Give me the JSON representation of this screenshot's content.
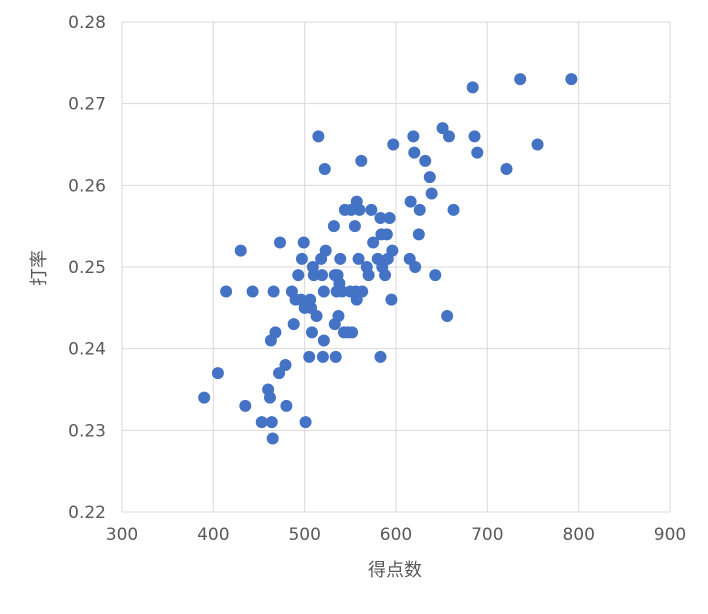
{
  "chart_data": {
    "type": "scatter",
    "xlabel": "得点数",
    "ylabel": "打率",
    "xlim": [
      300,
      900
    ],
    "ylim": [
      0.22,
      0.28
    ],
    "x_ticks": [
      300,
      400,
      500,
      600,
      700,
      800,
      900
    ],
    "y_ticks": [
      0.22,
      0.23,
      0.24,
      0.25,
      0.26,
      0.27,
      0.28
    ],
    "x_tick_labels": [
      "300",
      "400",
      "500",
      "600",
      "700",
      "800",
      "900"
    ],
    "y_tick_labels": [
      "0.22",
      "0.23",
      "0.24",
      "0.25",
      "0.26",
      "0.27",
      "0.28"
    ],
    "grid": true,
    "marker_color": "#4472c4",
    "series": [
      {
        "points": [
          [
            390,
            0.234
          ],
          [
            405,
            0.237
          ],
          [
            414,
            0.247
          ],
          [
            430,
            0.252
          ],
          [
            435,
            0.233
          ],
          [
            443,
            0.247
          ],
          [
            453,
            0.231
          ],
          [
            460,
            0.235
          ],
          [
            462,
            0.234
          ],
          [
            463,
            0.241
          ],
          [
            464,
            0.231
          ],
          [
            465,
            0.229
          ],
          [
            466,
            0.247
          ],
          [
            468,
            0.242
          ],
          [
            472,
            0.237
          ],
          [
            473,
            0.253
          ],
          [
            479,
            0.238
          ],
          [
            480,
            0.233
          ],
          [
            486,
            0.247
          ],
          [
            488,
            0.243
          ],
          [
            490,
            0.246
          ],
          [
            493,
            0.249
          ],
          [
            496,
            0.246
          ],
          [
            497,
            0.251
          ],
          [
            499,
            0.253
          ],
          [
            500,
            0.245
          ],
          [
            501,
            0.231
          ],
          [
            505,
            0.239
          ],
          [
            506,
            0.246
          ],
          [
            507,
            0.245
          ],
          [
            508,
            0.242
          ],
          [
            509,
            0.25
          ],
          [
            510,
            0.249
          ],
          [
            513,
            0.244
          ],
          [
            515,
            0.266
          ],
          [
            518,
            0.251
          ],
          [
            519,
            0.249
          ],
          [
            520,
            0.239
          ],
          [
            521,
            0.241
          ],
          [
            521,
            0.247
          ],
          [
            522,
            0.262
          ],
          [
            523,
            0.252
          ],
          [
            532,
            0.255
          ],
          [
            533,
            0.249
          ],
          [
            533,
            0.243
          ],
          [
            534,
            0.239
          ],
          [
            535,
            0.247
          ],
          [
            536,
            0.249
          ],
          [
            537,
            0.244
          ],
          [
            538,
            0.248
          ],
          [
            539,
            0.251
          ],
          [
            541,
            0.247
          ],
          [
            543,
            0.242
          ],
          [
            544,
            0.257
          ],
          [
            547,
            0.242
          ],
          [
            550,
            0.247
          ],
          [
            551,
            0.257
          ],
          [
            552,
            0.242
          ],
          [
            555,
            0.255
          ],
          [
            556,
            0.247
          ],
          [
            557,
            0.246
          ],
          [
            557,
            0.258
          ],
          [
            559,
            0.251
          ],
          [
            560,
            0.257
          ],
          [
            562,
            0.263
          ],
          [
            563,
            0.247
          ],
          [
            568,
            0.25
          ],
          [
            570,
            0.249
          ],
          [
            573,
            0.257
          ],
          [
            575,
            0.253
          ],
          [
            580,
            0.251
          ],
          [
            583,
            0.239
          ],
          [
            583,
            0.256
          ],
          [
            584,
            0.254
          ],
          [
            585,
            0.25
          ],
          [
            588,
            0.249
          ],
          [
            590,
            0.254
          ],
          [
            591,
            0.251
          ],
          [
            593,
            0.256
          ],
          [
            595,
            0.246
          ],
          [
            596,
            0.252
          ],
          [
            597,
            0.265
          ],
          [
            615,
            0.251
          ],
          [
            616,
            0.258
          ],
          [
            619,
            0.266
          ],
          [
            620,
            0.264
          ],
          [
            621,
            0.25
          ],
          [
            625,
            0.254
          ],
          [
            626,
            0.257
          ],
          [
            632,
            0.263
          ],
          [
            637,
            0.261
          ],
          [
            639,
            0.259
          ],
          [
            643,
            0.249
          ],
          [
            651,
            0.267
          ],
          [
            656,
            0.244
          ],
          [
            658,
            0.266
          ],
          [
            663,
            0.257
          ],
          [
            684,
            0.272
          ],
          [
            686,
            0.266
          ],
          [
            689,
            0.264
          ],
          [
            721,
            0.262
          ],
          [
            736,
            0.273
          ],
          [
            755,
            0.265
          ],
          [
            792,
            0.273
          ]
        ]
      }
    ]
  }
}
